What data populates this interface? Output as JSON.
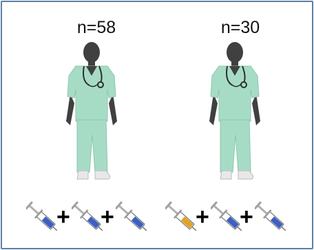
{
  "groups": [
    {
      "count_label": "n=58",
      "vaccine_doses": [
        "blue-vaccine",
        "blue-vaccine",
        "blue-vaccine"
      ],
      "dose_colors": [
        "#3b5fc4",
        "#3b5fc4",
        "#3b5fc4"
      ]
    },
    {
      "count_label": "n=30",
      "vaccine_doses": [
        "orange-vaccine",
        "blue-vaccine",
        "blue-vaccine"
      ],
      "dose_colors": [
        "#e3a126",
        "#3b5fc4",
        "#3b5fc4"
      ]
    }
  ],
  "icons": {
    "person": "healthcare-worker-icon",
    "dose": "syringe-icon",
    "separator": "plus-icon"
  },
  "colors": {
    "frame_border": "#5a7fa6",
    "scrubs": "#a6dcc6",
    "skin": "#404040",
    "stethoscope": "#2e2e2e"
  },
  "separators": [
    "+",
    "+"
  ]
}
